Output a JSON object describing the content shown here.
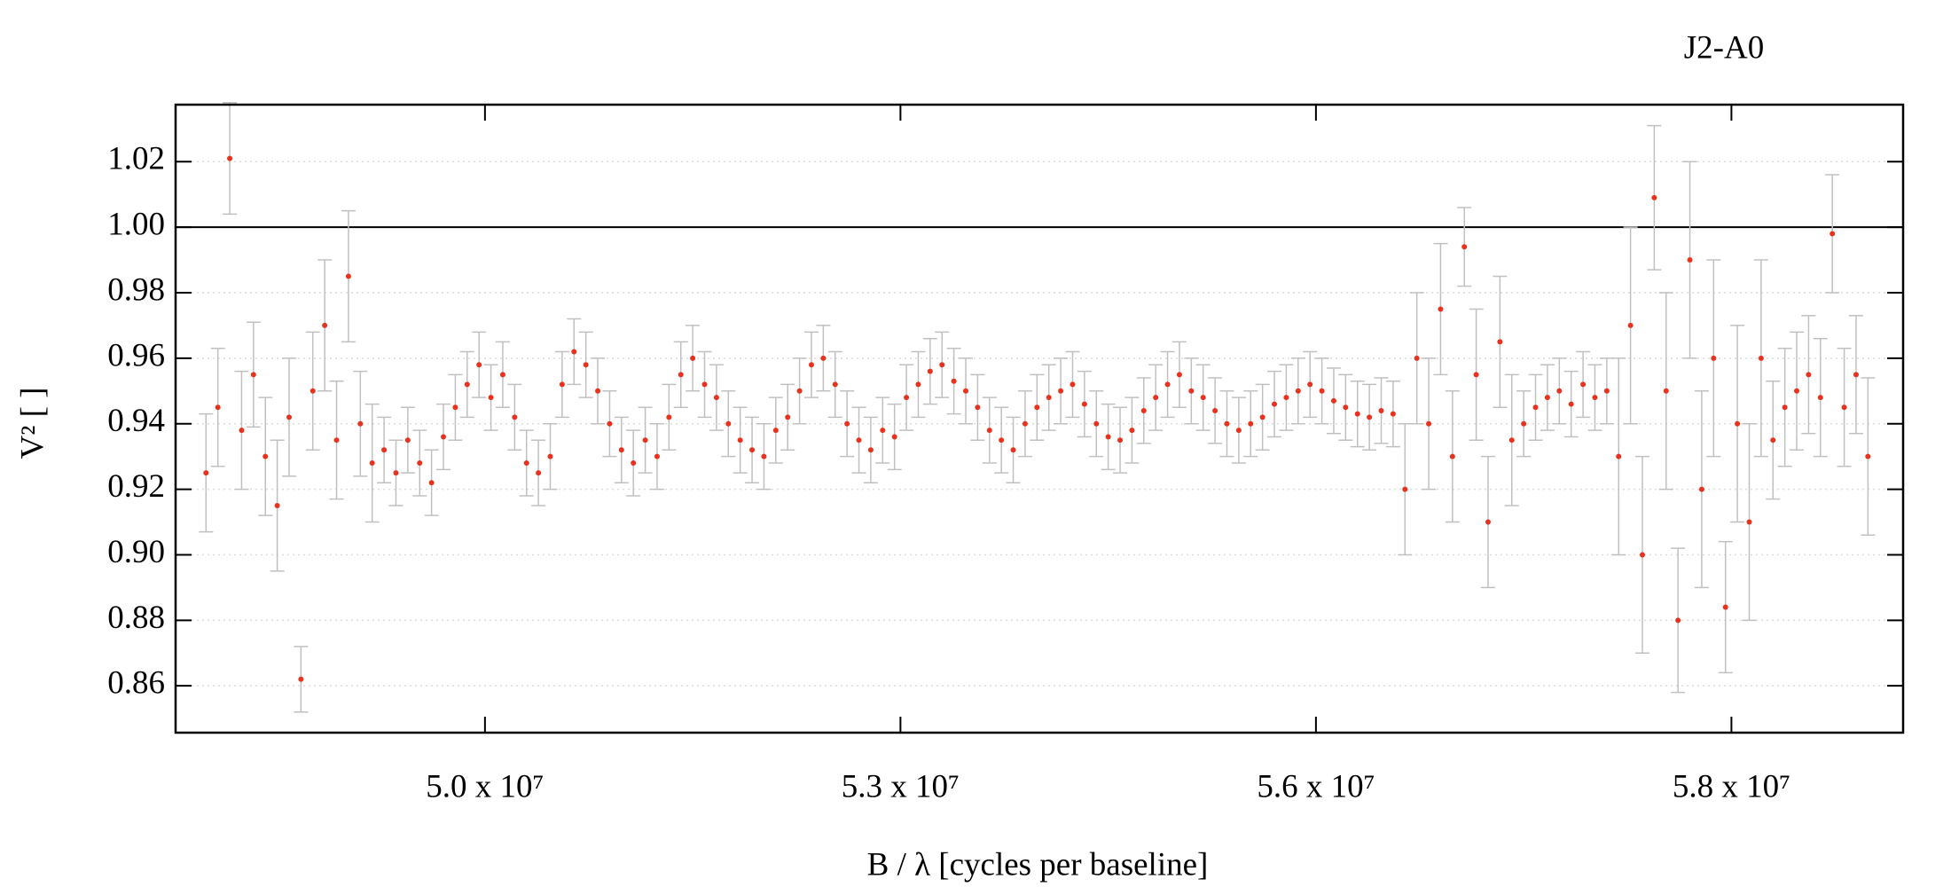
{
  "chart_data": {
    "type": "scatter",
    "title": "J2-A0",
    "xlabel": "B / λ [cycles per baseline]",
    "ylabel": "V² [ ]",
    "xlim": [
      47915000,
      59557000
    ],
    "ylim": [
      0.8457,
      1.0374
    ],
    "xticks": [
      {
        "value": 50000000,
        "label": "5.0 x 10⁷"
      },
      {
        "value": 52800000,
        "label": "5.3 x 10⁷"
      },
      {
        "value": 55600000,
        "label": "5.6 x 10⁷"
      },
      {
        "value": 58400000,
        "label": "5.8 x 10⁷"
      }
    ],
    "yticks": [
      0.86,
      0.88,
      {
        "value": 0.9,
        "label": "0.90"
      },
      0.92,
      0.94,
      0.96,
      0.98,
      {
        "value": 1,
        "label": "1.00"
      },
      1.02
    ],
    "hline": 1,
    "grid": true,
    "series": [
      {
        "color": "#e8321e",
        "error_color": "#c0c0c0",
        "x": [
          48120000,
          48200000,
          48280000,
          48360000,
          48440000,
          48520000,
          48600000,
          48680000,
          48760000,
          48840000,
          48920000,
          49000000,
          49080000,
          49160000,
          49240000,
          49320000,
          49400000,
          49480000,
          49560000,
          49640000,
          49720000,
          49800000,
          49880000,
          49960000,
          50040000,
          50120000,
          50200000,
          50280000,
          50360000,
          50440000,
          50520000,
          50600000,
          50680000,
          50760000,
          50840000,
          50920000,
          51000000,
          51080000,
          51160000,
          51240000,
          51320000,
          51400000,
          51480000,
          51560000,
          51640000,
          51720000,
          51800000,
          51880000,
          51960000,
          52040000,
          52120000,
          52200000,
          52280000,
          52360000,
          52440000,
          52520000,
          52600000,
          52680000,
          52760000,
          52840000,
          52920000,
          53000000,
          53080000,
          53160000,
          53240000,
          53320000,
          53400000,
          53480000,
          53560000,
          53640000,
          53720000,
          53800000,
          53880000,
          53960000,
          54040000,
          54120000,
          54200000,
          54280000,
          54360000,
          54440000,
          54520000,
          54600000,
          54680000,
          54760000,
          54840000,
          54920000,
          55000000,
          55080000,
          55160000,
          55240000,
          55320000,
          55400000,
          55480000,
          55560000,
          55640000,
          55720000,
          55800000,
          55880000,
          55960000,
          56040000,
          56120000,
          56200000,
          56280000,
          56360000,
          56440000,
          56520000,
          56600000,
          56680000,
          56760000,
          56840000,
          56920000,
          57000000,
          57080000,
          57160000,
          57240000,
          57320000,
          57400000,
          57480000,
          57560000,
          57640000,
          57720000,
          57800000,
          57880000,
          57960000,
          58040000,
          58120000,
          58200000,
          58280000,
          58360000,
          58440000,
          58520000,
          58600000,
          58680000,
          58760000,
          58840000,
          58920000,
          59000000,
          59080000,
          59160000,
          59240000,
          59320000
        ],
        "values": [
          0.925,
          0.945,
          1.021,
          0.938,
          0.955,
          0.93,
          0.915,
          0.942,
          0.862,
          0.95,
          0.97,
          0.935,
          0.985,
          0.94,
          0.928,
          0.932,
          0.925,
          0.935,
          0.928,
          0.922,
          0.936,
          0.945,
          0.952,
          0.958,
          0.948,
          0.955,
          0.942,
          0.928,
          0.925,
          0.93,
          0.952,
          0.962,
          0.958,
          0.95,
          0.94,
          0.932,
          0.928,
          0.935,
          0.93,
          0.942,
          0.955,
          0.96,
          0.952,
          0.948,
          0.94,
          0.935,
          0.932,
          0.93,
          0.938,
          0.942,
          0.95,
          0.958,
          0.96,
          0.952,
          0.94,
          0.935,
          0.932,
          0.938,
          0.936,
          0.948,
          0.952,
          0.956,
          0.958,
          0.953,
          0.95,
          0.945,
          0.938,
          0.935,
          0.932,
          0.94,
          0.945,
          0.948,
          0.95,
          0.952,
          0.946,
          0.94,
          0.936,
          0.935,
          0.938,
          0.944,
          0.948,
          0.952,
          0.955,
          0.95,
          0.948,
          0.944,
          0.94,
          0.938,
          0.94,
          0.942,
          0.946,
          0.948,
          0.95,
          0.952,
          0.95,
          0.947,
          0.945,
          0.943,
          0.942,
          0.944,
          0.943,
          0.92,
          0.96,
          0.94,
          0.975,
          0.93,
          0.994,
          0.955,
          0.91,
          0.965,
          0.935,
          0.94,
          0.945,
          0.948,
          0.95,
          0.946,
          0.952,
          0.948,
          0.95,
          0.93,
          0.97,
          0.9,
          1.009,
          0.95,
          0.88,
          0.99,
          0.92,
          0.96,
          0.884,
          0.94,
          0.91,
          0.96,
          0.935,
          0.945,
          0.95,
          0.955,
          0.948,
          0.998,
          0.945,
          0.955,
          0.93
        ],
        "errors": [
          0.018,
          0.018,
          0.017,
          0.018,
          0.016,
          0.018,
          0.02,
          0.018,
          0.01,
          0.018,
          0.02,
          0.018,
          0.02,
          0.016,
          0.018,
          0.01,
          0.01,
          0.01,
          0.01,
          0.01,
          0.01,
          0.01,
          0.01,
          0.01,
          0.01,
          0.01,
          0.01,
          0.01,
          0.01,
          0.01,
          0.01,
          0.01,
          0.01,
          0.01,
          0.01,
          0.01,
          0.01,
          0.01,
          0.01,
          0.01,
          0.01,
          0.01,
          0.01,
          0.01,
          0.01,
          0.01,
          0.01,
          0.01,
          0.01,
          0.01,
          0.01,
          0.01,
          0.01,
          0.01,
          0.01,
          0.01,
          0.01,
          0.01,
          0.01,
          0.01,
          0.01,
          0.01,
          0.01,
          0.01,
          0.01,
          0.01,
          0.01,
          0.01,
          0.01,
          0.01,
          0.01,
          0.01,
          0.01,
          0.01,
          0.01,
          0.01,
          0.01,
          0.01,
          0.01,
          0.01,
          0.01,
          0.01,
          0.01,
          0.01,
          0.01,
          0.01,
          0.01,
          0.01,
          0.01,
          0.01,
          0.01,
          0.01,
          0.01,
          0.01,
          0.01,
          0.01,
          0.01,
          0.01,
          0.01,
          0.01,
          0.01,
          0.02,
          0.02,
          0.02,
          0.02,
          0.02,
          0.012,
          0.02,
          0.02,
          0.02,
          0.02,
          0.01,
          0.01,
          0.01,
          0.01,
          0.01,
          0.01,
          0.01,
          0.01,
          0.03,
          0.03,
          0.03,
          0.022,
          0.03,
          0.022,
          0.03,
          0.03,
          0.03,
          0.02,
          0.03,
          0.03,
          0.03,
          0.018,
          0.018,
          0.018,
          0.018,
          0.018,
          0.018,
          0.018,
          0.018,
          0.024
        ]
      }
    ]
  }
}
